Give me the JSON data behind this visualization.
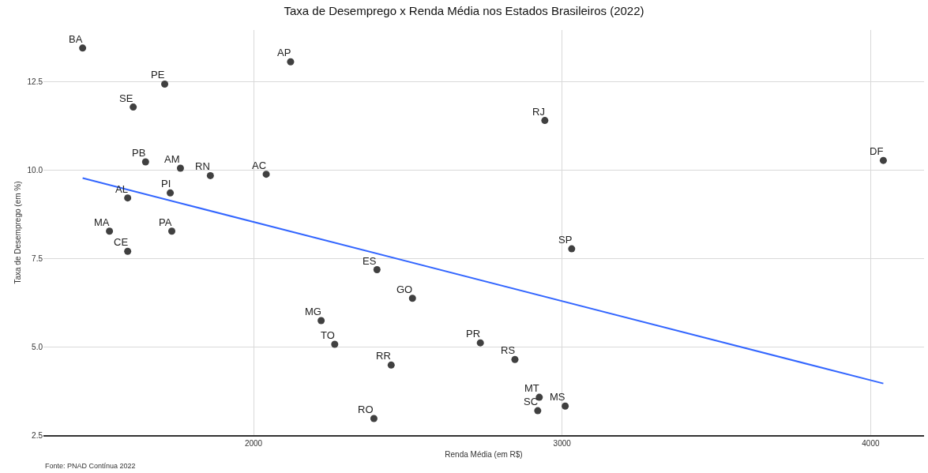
{
  "chart_data": {
    "type": "scatter",
    "title": "Taxa de Desemprego x Renda Média nos Estados Brasileiros (2022)",
    "xlabel": "Renda Média (em R$)",
    "ylabel": "Taxa de Desemprego (em %)",
    "xlim": [
      1319,
      4173
    ],
    "ylim": [
      2.5,
      13.96
    ],
    "xticks": [
      2000,
      3000,
      4000
    ],
    "yticks": [
      {
        "value": 2.5,
        "label": "2.5"
      },
      {
        "value": 5,
        "label": "5.0"
      },
      {
        "value": 7.5,
        "label": "7.5"
      },
      {
        "value": 10,
        "label": "10.0"
      },
      {
        "value": 12.5,
        "label": "12.5"
      }
    ],
    "grid": true,
    "series": [
      {
        "marker": "circle",
        "color": "#404040",
        "x": [
          1446,
          2120,
          1712,
          1610,
          1650,
          1763,
          1860,
          2041,
          1730,
          1592,
          1533,
          1735,
          1592,
          2400,
          2515,
          2219,
          2263,
          2446,
          2390,
          2944,
          4041,
          3031,
          2735,
          2847,
          2926,
          2921,
          3010
        ],
        "values": [
          13.45,
          13.06,
          12.43,
          11.78,
          10.23,
          10.05,
          9.84,
          9.88,
          9.35,
          9.21,
          8.27,
          8.27,
          7.7,
          7.18,
          6.37,
          5.74,
          5.07,
          4.48,
          2.97,
          11.4,
          10.27,
          7.77,
          5.11,
          4.64,
          3.57,
          3.19,
          3.32
        ]
      },
      {
        "type": "line",
        "marker": "none",
        "color": "#3366ff",
        "x": [
          1446,
          4041
        ],
        "values": [
          9.77,
          3.96
        ]
      }
    ],
    "annotations": [
      {
        "text": "BA",
        "x": 1446,
        "y": 13.45
      },
      {
        "text": "AP",
        "x": 2120,
        "y": 13.06
      },
      {
        "text": "PE",
        "x": 1712,
        "y": 12.43
      },
      {
        "text": "SE",
        "x": 1610,
        "y": 11.78
      },
      {
        "text": "PB",
        "x": 1650,
        "y": 10.23
      },
      {
        "text": "AM",
        "x": 1763,
        "y": 10.05
      },
      {
        "text": "RN",
        "x": 1860,
        "y": 9.84
      },
      {
        "text": "AC",
        "x": 2041,
        "y": 9.88
      },
      {
        "text": "PI",
        "x": 1730,
        "y": 9.35
      },
      {
        "text": "AL",
        "x": 1592,
        "y": 9.21
      },
      {
        "text": "MA",
        "x": 1533,
        "y": 8.27
      },
      {
        "text": "PA",
        "x": 1735,
        "y": 8.27
      },
      {
        "text": "CE",
        "x": 1592,
        "y": 7.7
      },
      {
        "text": "ES",
        "x": 2400,
        "y": 7.18
      },
      {
        "text": "GO",
        "x": 2515,
        "y": 6.37
      },
      {
        "text": "MG",
        "x": 2219,
        "y": 5.74
      },
      {
        "text": "TO",
        "x": 2263,
        "y": 5.07
      },
      {
        "text": "RR",
        "x": 2446,
        "y": 4.48
      },
      {
        "text": "RO",
        "x": 2390,
        "y": 2.97
      },
      {
        "text": "RJ",
        "x": 2944,
        "y": 11.4
      },
      {
        "text": "DF",
        "x": 4041,
        "y": 10.27
      },
      {
        "text": "SP",
        "x": 3031,
        "y": 7.77
      },
      {
        "text": "PR",
        "x": 2735,
        "y": 5.11
      },
      {
        "text": "RS",
        "x": 2847,
        "y": 4.64
      },
      {
        "text": "MT",
        "x": 2926,
        "y": 3.57
      },
      {
        "text": "SC",
        "x": 2921,
        "y": 3.19
      },
      {
        "text": "MS",
        "x": 3010,
        "y": 3.32
      },
      "Fonte: PNAD Contínua 2022"
    ]
  }
}
